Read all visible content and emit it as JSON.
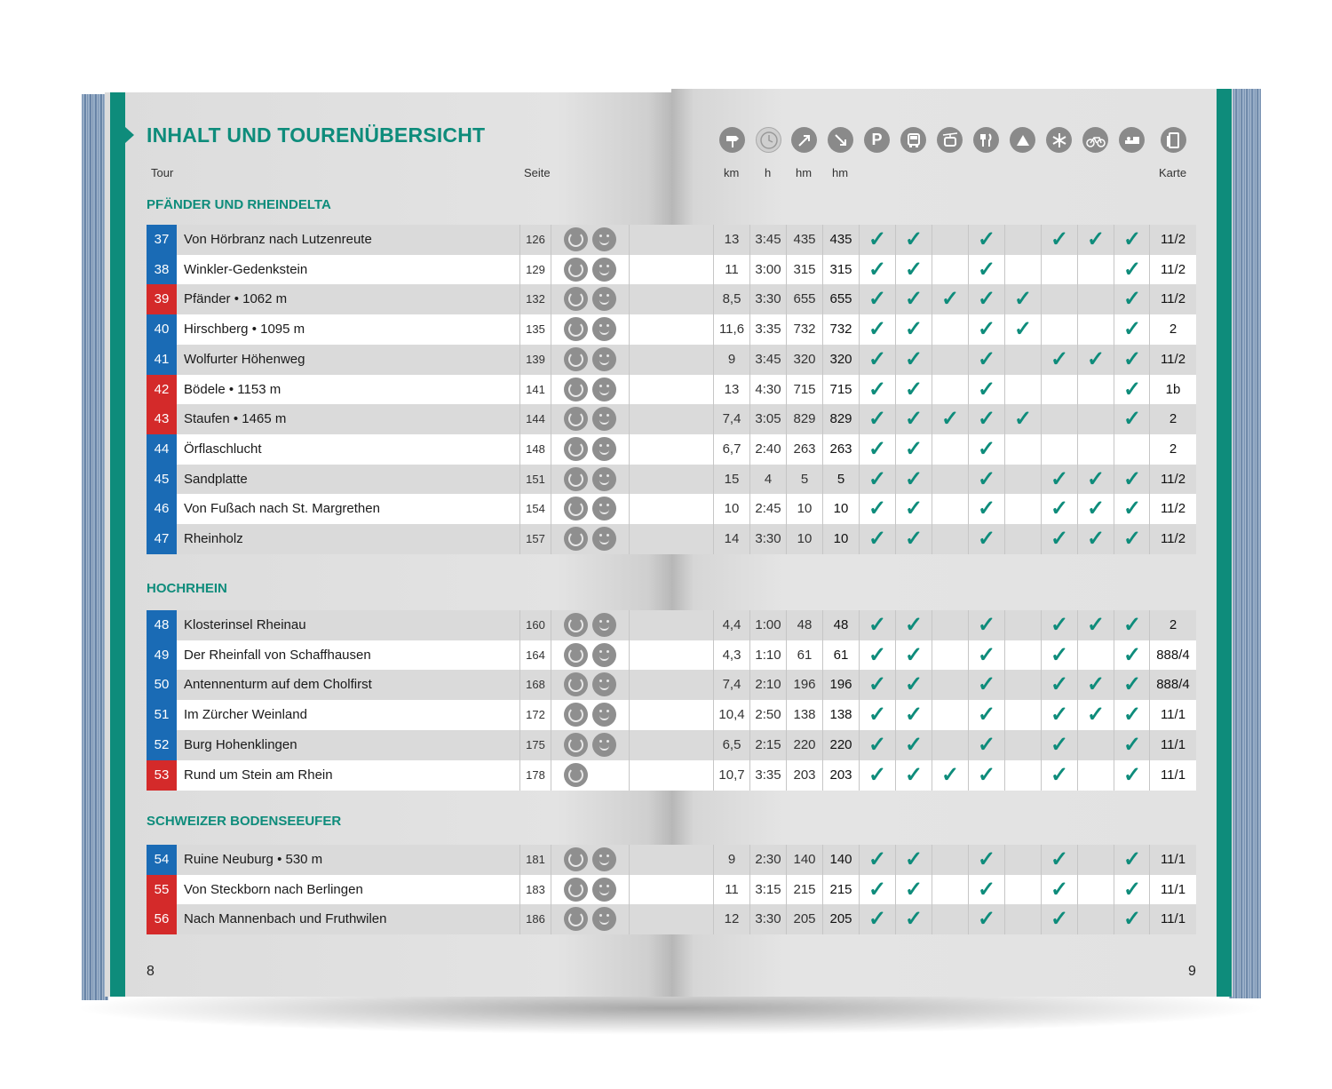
{
  "title": "INHALT UND TOURENÜBERSICHT",
  "header": {
    "tour": "Tour",
    "seite": "Seite",
    "km": "km",
    "h": "h",
    "hm_up": "hm",
    "hm_down": "hm",
    "karte": "Karte"
  },
  "icons": {
    "parking": "P",
    "legend": [
      "signpost-icon",
      "clock-icon",
      "ascent-icon",
      "descent-icon",
      "parking-icon",
      "bus-icon",
      "cablecar-icon",
      "restaurant-icon",
      "hut-icon",
      "winter-icon",
      "bike-icon",
      "bed-icon",
      "map-icon"
    ]
  },
  "colors": {
    "accent": "#0e8c7b",
    "blue": "#1a6bb5",
    "red": "#d42a2a"
  },
  "sections": [
    {
      "name": "PFÄNDER UND RHEINDELTA",
      "tours": [
        {
          "num": "37",
          "color": "blue",
          "name": "Von Hörbranz nach Lutzenreute",
          "page": "126",
          "kid": true,
          "km": "13",
          "h": "3:45",
          "up": "435",
          "down": "435",
          "checks": [
            1,
            1,
            0,
            1,
            0,
            1,
            1,
            1
          ],
          "karte": "11/2"
        },
        {
          "num": "38",
          "color": "blue",
          "name": "Winkler-Gedenkstein",
          "page": "129",
          "kid": true,
          "km": "11",
          "h": "3:00",
          "up": "315",
          "down": "315",
          "checks": [
            1,
            1,
            0,
            1,
            0,
            0,
            0,
            1
          ],
          "karte": "11/2"
        },
        {
          "num": "39",
          "color": "red",
          "name": "Pfänder • 1062 m",
          "page": "132",
          "kid": true,
          "km": "8,5",
          "h": "3:30",
          "up": "655",
          "down": "655",
          "checks": [
            1,
            1,
            1,
            1,
            1,
            0,
            0,
            1
          ],
          "karte": "11/2"
        },
        {
          "num": "40",
          "color": "blue",
          "name": "Hirschberg • 1095 m",
          "page": "135",
          "kid": true,
          "km": "11,6",
          "h": "3:35",
          "up": "732",
          "down": "732",
          "checks": [
            1,
            1,
            0,
            1,
            1,
            0,
            0,
            1
          ],
          "karte": "2"
        },
        {
          "num": "41",
          "color": "blue",
          "name": "Wolfurter Höhenweg",
          "page": "139",
          "kid": true,
          "km": "9",
          "h": "3:45",
          "up": "320",
          "down": "320",
          "checks": [
            1,
            1,
            0,
            1,
            0,
            1,
            1,
            1
          ],
          "karte": "11/2"
        },
        {
          "num": "42",
          "color": "red",
          "name": "Bödele • 1153 m",
          "page": "141",
          "kid": true,
          "km": "13",
          "h": "4:30",
          "up": "715",
          "down": "715",
          "checks": [
            1,
            1,
            0,
            1,
            0,
            0,
            0,
            1
          ],
          "karte": "1b"
        },
        {
          "num": "43",
          "color": "red",
          "name": "Staufen • 1465 m",
          "page": "144",
          "kid": true,
          "km": "7,4",
          "h": "3:05",
          "up": "829",
          "down": "829",
          "checks": [
            1,
            1,
            1,
            1,
            1,
            0,
            0,
            1
          ],
          "karte": "2"
        },
        {
          "num": "44",
          "color": "blue",
          "name": "Örflaschlucht",
          "page": "148",
          "kid": true,
          "km": "6,7",
          "h": "2:40",
          "up": "263",
          "down": "263",
          "checks": [
            1,
            1,
            0,
            1,
            0,
            0,
            0,
            0
          ],
          "karte": "2"
        },
        {
          "num": "45",
          "color": "blue",
          "name": "Sandplatte",
          "page": "151",
          "kid": true,
          "km": "15",
          "h": "4",
          "up": "5",
          "down": "5",
          "checks": [
            1,
            1,
            0,
            1,
            0,
            1,
            1,
            1
          ],
          "karte": "11/2"
        },
        {
          "num": "46",
          "color": "blue",
          "name": "Von Fußach nach St. Margrethen",
          "page": "154",
          "kid": true,
          "km": "10",
          "h": "2:45",
          "up": "10",
          "down": "10",
          "checks": [
            1,
            1,
            0,
            1,
            0,
            1,
            1,
            1
          ],
          "karte": "11/2"
        },
        {
          "num": "47",
          "color": "blue",
          "name": "Rheinholz",
          "page": "157",
          "kid": true,
          "km": "14",
          "h": "3:30",
          "up": "10",
          "down": "10",
          "checks": [
            1,
            1,
            0,
            1,
            0,
            1,
            1,
            1
          ],
          "karte": "11/2"
        }
      ]
    },
    {
      "name": "HOCHRHEIN",
      "tours": [
        {
          "num": "48",
          "color": "blue",
          "name": "Klosterinsel Rheinau",
          "page": "160",
          "kid": true,
          "km": "4,4",
          "h": "1:00",
          "up": "48",
          "down": "48",
          "checks": [
            1,
            1,
            0,
            1,
            0,
            1,
            1,
            1
          ],
          "karte": "2"
        },
        {
          "num": "49",
          "color": "blue",
          "name": "Der Rheinfall von Schaffhausen",
          "page": "164",
          "kid": true,
          "km": "4,3",
          "h": "1:10",
          "up": "61",
          "down": "61",
          "checks": [
            1,
            1,
            0,
            1,
            0,
            1,
            0,
            1
          ],
          "karte": "888/4"
        },
        {
          "num": "50",
          "color": "blue",
          "name": "Antennenturm auf dem Cholfirst",
          "page": "168",
          "kid": true,
          "km": "7,4",
          "h": "2:10",
          "up": "196",
          "down": "196",
          "checks": [
            1,
            1,
            0,
            1,
            0,
            1,
            1,
            1
          ],
          "karte": "888/4"
        },
        {
          "num": "51",
          "color": "blue",
          "name": "Im Zürcher Weinland",
          "page": "172",
          "kid": true,
          "km": "10,4",
          "h": "2:50",
          "up": "138",
          "down": "138",
          "checks": [
            1,
            1,
            0,
            1,
            0,
            1,
            1,
            1
          ],
          "karte": "11/1"
        },
        {
          "num": "52",
          "color": "blue",
          "name": "Burg Hohenklingen",
          "page": "175",
          "kid": true,
          "km": "6,5",
          "h": "2:15",
          "up": "220",
          "down": "220",
          "checks": [
            1,
            1,
            0,
            1,
            0,
            1,
            0,
            1
          ],
          "karte": "11/1"
        },
        {
          "num": "53",
          "color": "red",
          "name": "Rund um Stein am Rhein",
          "page": "178",
          "kid": false,
          "km": "10,7",
          "h": "3:35",
          "up": "203",
          "down": "203",
          "checks": [
            1,
            1,
            1,
            1,
            0,
            1,
            0,
            1
          ],
          "karte": "11/1"
        }
      ]
    },
    {
      "name": "SCHWEIZER BODENSEEUFER",
      "tours": [
        {
          "num": "54",
          "color": "blue",
          "name": "Ruine Neuburg • 530 m",
          "page": "181",
          "kid": true,
          "km": "9",
          "h": "2:30",
          "up": "140",
          "down": "140",
          "checks": [
            1,
            1,
            0,
            1,
            0,
            1,
            0,
            1
          ],
          "karte": "11/1"
        },
        {
          "num": "55",
          "color": "red",
          "name": "Von Steckborn nach Berlingen",
          "page": "183",
          "kid": true,
          "km": "11",
          "h": "3:15",
          "up": "215",
          "down": "215",
          "checks": [
            1,
            1,
            0,
            1,
            0,
            1,
            0,
            1
          ],
          "karte": "11/1"
        },
        {
          "num": "56",
          "color": "red",
          "name": "Nach Mannenbach und Fruthwilen",
          "page": "186",
          "kid": true,
          "km": "12",
          "h": "3:30",
          "up": "205",
          "down": "205",
          "checks": [
            1,
            1,
            0,
            1,
            0,
            1,
            0,
            1
          ],
          "karte": "11/1"
        }
      ]
    }
  ],
  "check_symbol": "✓",
  "page_left": "8",
  "page_right": "9"
}
